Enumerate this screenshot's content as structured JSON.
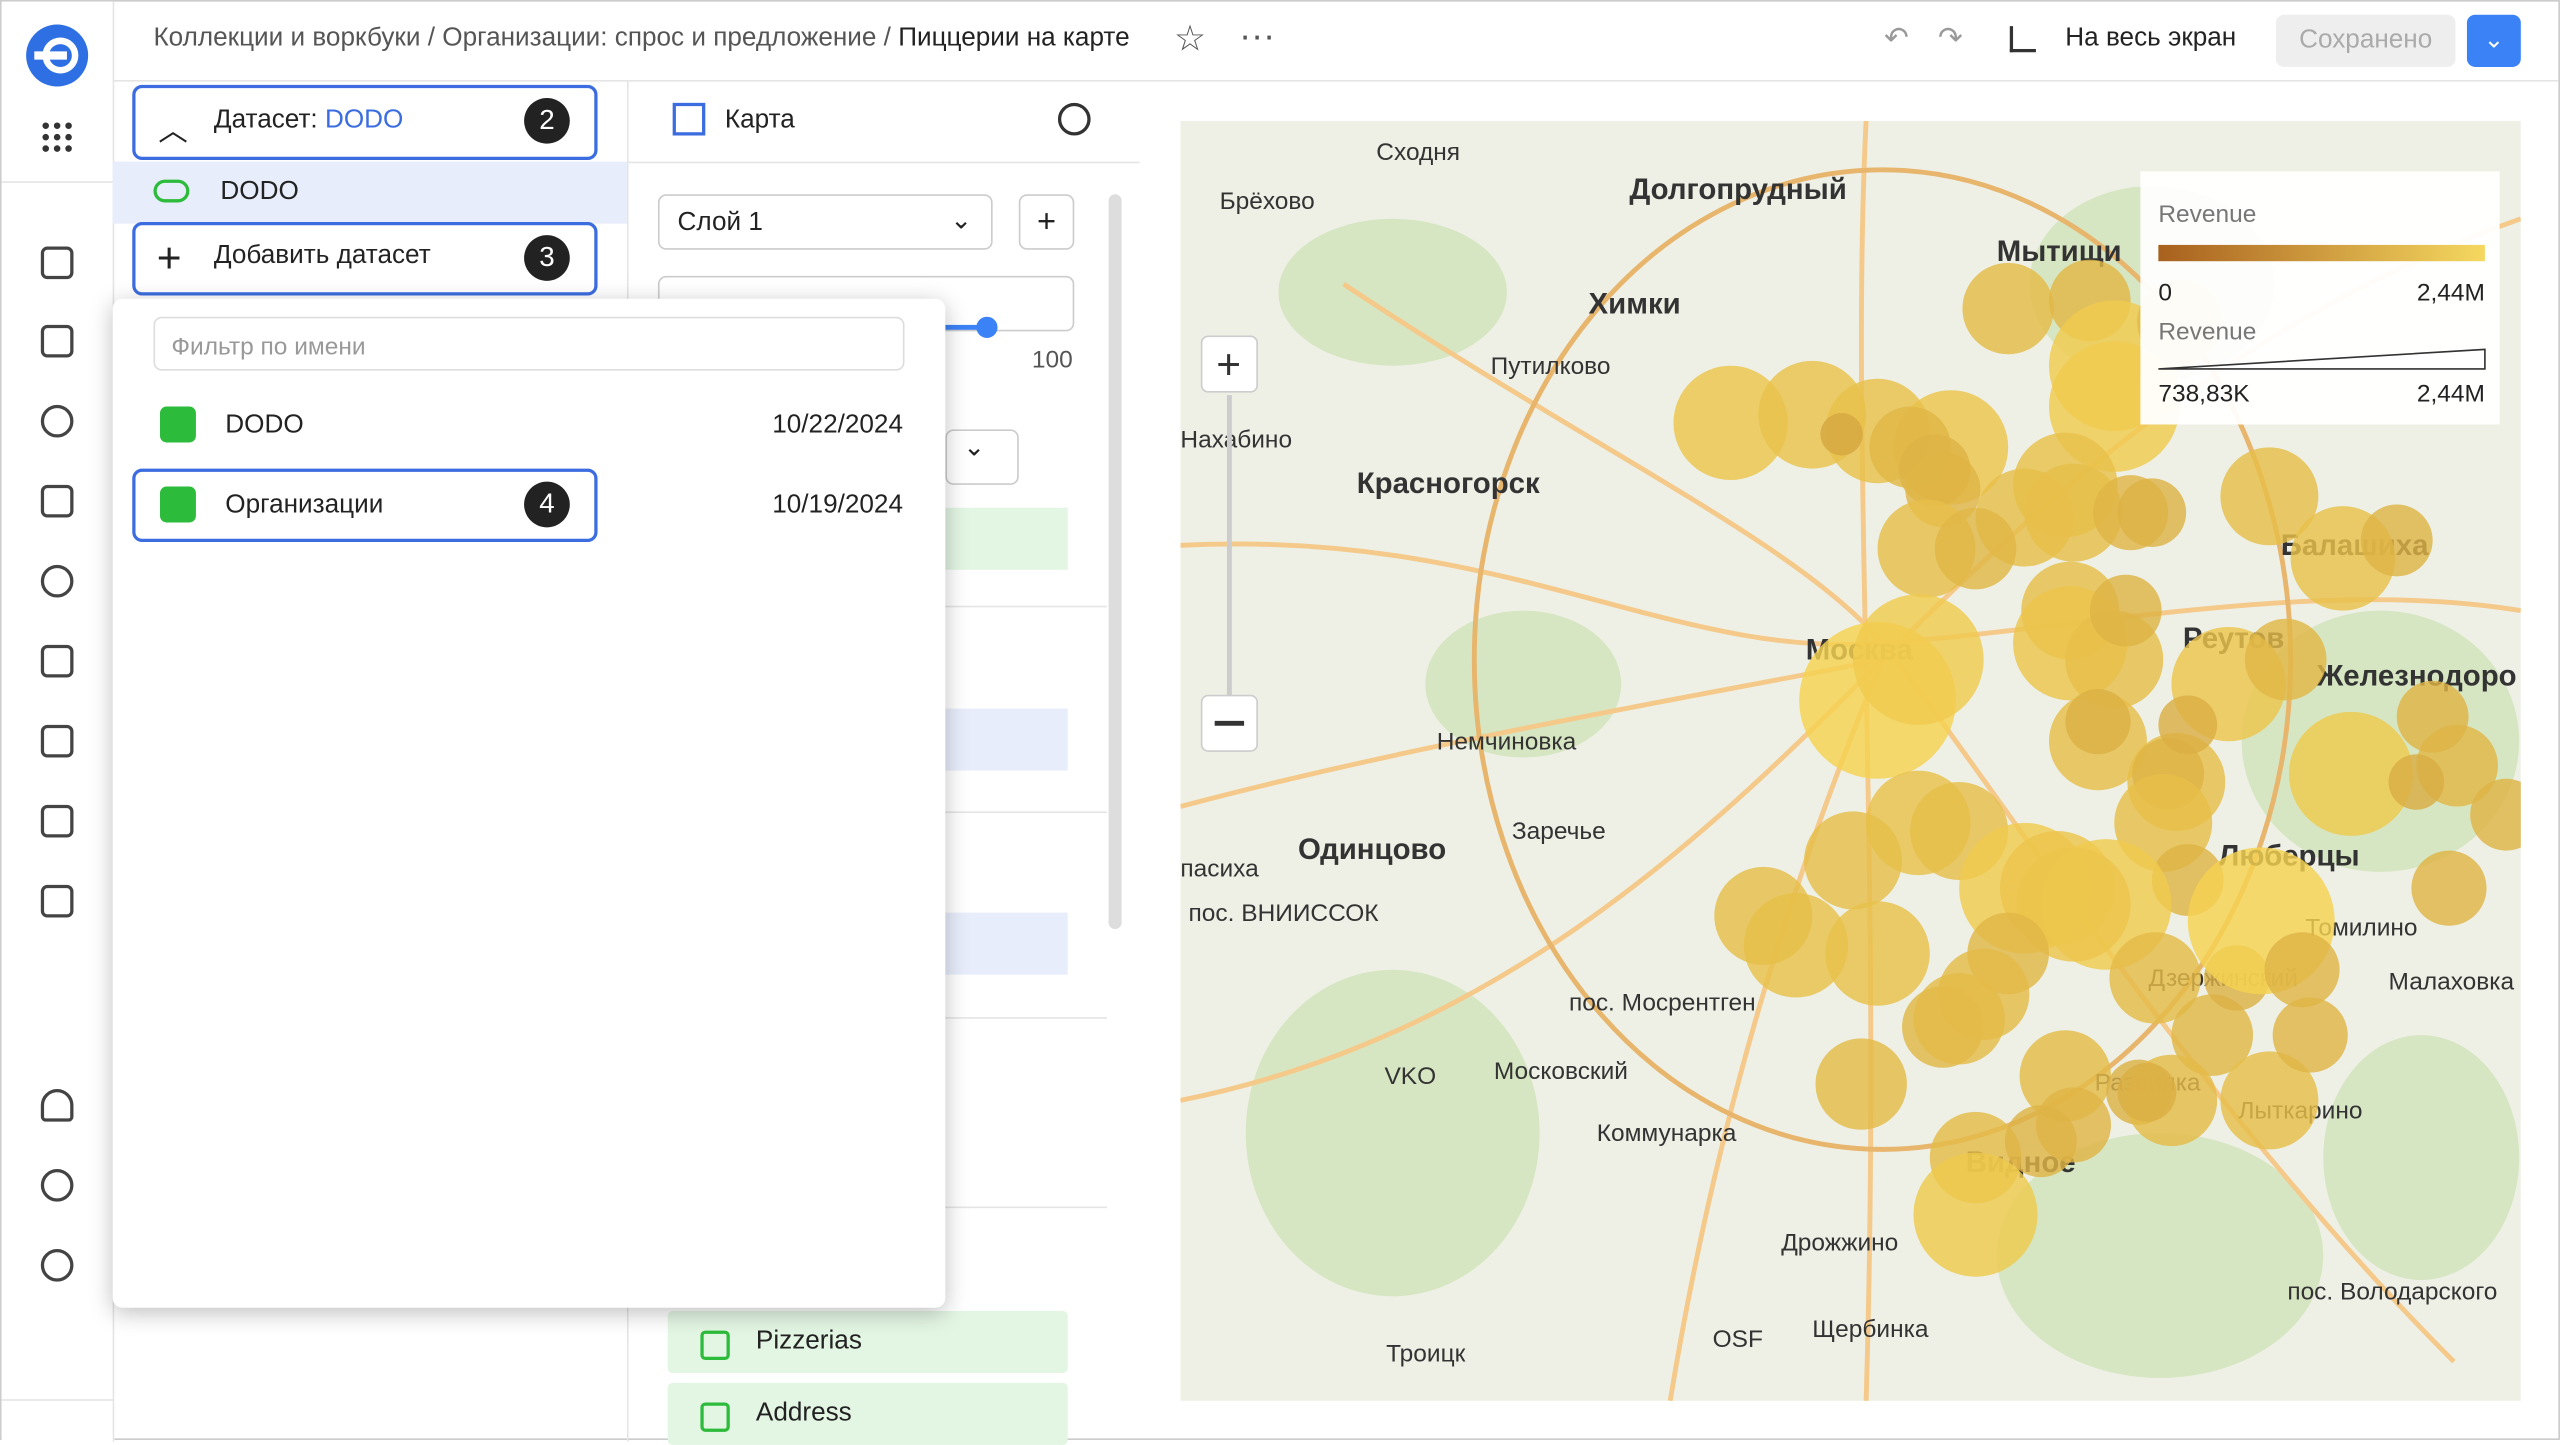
{
  "header": {
    "breadcrumbs": [
      "Коллекции и воркбуки",
      "Организации: спрос и предложение",
      "Пиццерии на карте"
    ],
    "separator": "/",
    "fullscreen": "На весь экран",
    "saved": "Сохранено"
  },
  "datasets_panel": {
    "dataset_label": "Датасет:",
    "dataset_name": "DODO",
    "badge_dataset": "2",
    "current": "DODO",
    "add_dataset": "Добавить датасет",
    "badge_add": "3"
  },
  "dropdown": {
    "placeholder": "Фильтр по имени",
    "items": [
      {
        "name": "DODO",
        "date": "10/22/2024"
      },
      {
        "name": "Организации",
        "date": "10/19/2024"
      }
    ],
    "badge_item": "4"
  },
  "visual_panel": {
    "type": "Карта",
    "layer": "Слой 1",
    "slider_max": "100",
    "fields": [
      "Pizzerias",
      "Address"
    ]
  },
  "map": {
    "labels": [
      "Сходня",
      "Брёхово",
      "Долгопрудный",
      "Мытищи",
      "Химки",
      "Путилково",
      "Нахабино",
      "Красногорск",
      "Балашиха",
      "Реутов",
      "Железнодоро",
      "Москва",
      "Немчиновка",
      "Заречье",
      "Одинцово",
      "пасиха",
      "пос. ВНИИССОК",
      "Люберцы",
      "Томилино",
      "Дзержинский",
      "Малаховка",
      "пос. Мосрентген",
      "Московский",
      "VKO",
      "Коммунарка",
      "Развилка",
      "Лыткарино",
      "Видное",
      "Дрожжино",
      "OSF",
      "Щербинка",
      "Троицк",
      "пос. Володарского"
    ],
    "legend": {
      "color_title": "Revenue",
      "color_min": "0",
      "color_max": "2,44M",
      "size_title": "Revenue",
      "size_min": "738,83K",
      "size_max": "2,44M"
    }
  }
}
